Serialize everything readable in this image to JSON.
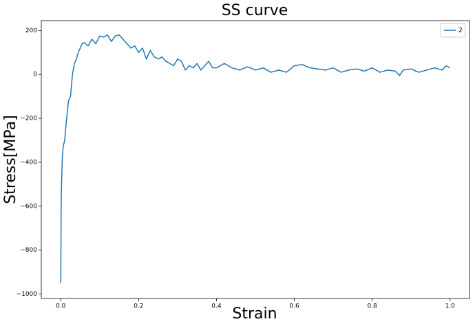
{
  "chart_data": {
    "type": "line",
    "title": "SS curve",
    "xlabel": "Strain",
    "ylabel": "Stress[MPa]",
    "x": [
      0.0,
      0.001,
      0.002,
      0.004,
      0.006,
      0.01,
      0.015,
      0.02,
      0.025,
      0.03,
      0.035,
      0.04,
      0.045,
      0.05,
      0.055,
      0.06,
      0.07,
      0.08,
      0.09,
      0.1,
      0.11,
      0.12,
      0.13,
      0.14,
      0.15,
      0.16,
      0.17,
      0.18,
      0.19,
      0.2,
      0.21,
      0.22,
      0.23,
      0.24,
      0.25,
      0.26,
      0.27,
      0.28,
      0.29,
      0.3,
      0.31,
      0.32,
      0.33,
      0.34,
      0.35,
      0.36,
      0.37,
      0.38,
      0.39,
      0.4,
      0.42,
      0.44,
      0.46,
      0.48,
      0.5,
      0.52,
      0.54,
      0.56,
      0.58,
      0.6,
      0.62,
      0.64,
      0.66,
      0.68,
      0.7,
      0.72,
      0.74,
      0.76,
      0.78,
      0.8,
      0.82,
      0.84,
      0.86,
      0.87,
      0.88,
      0.9,
      0.92,
      0.94,
      0.96,
      0.98,
      0.99,
      1.0
    ],
    "series": [
      {
        "name": "2",
        "color": "#1f77b4",
        "values": [
          -950,
          -600,
          -500,
          -380,
          -330,
          -300,
          -200,
          -120,
          -100,
          0,
          50,
          70,
          100,
          120,
          140,
          145,
          130,
          160,
          140,
          175,
          170,
          180,
          150,
          175,
          180,
          160,
          140,
          120,
          130,
          100,
          120,
          70,
          110,
          80,
          70,
          80,
          60,
          50,
          40,
          70,
          60,
          20,
          40,
          30,
          50,
          20,
          40,
          60,
          30,
          30,
          50,
          30,
          20,
          35,
          20,
          30,
          10,
          20,
          10,
          40,
          45,
          30,
          25,
          20,
          30,
          10,
          20,
          25,
          15,
          30,
          10,
          20,
          15,
          -5,
          20,
          25,
          10,
          20,
          30,
          20,
          40,
          30
        ]
      }
    ],
    "xlim": [
      -0.05,
      1.05
    ],
    "ylim": [
      -1020,
      245
    ],
    "xticks": [
      {
        "value": 0,
        "label": "0.0"
      },
      {
        "value": 0.2,
        "label": "0.2"
      },
      {
        "value": 0.4,
        "label": "0.4"
      },
      {
        "value": 0.6,
        "label": "0.6"
      },
      {
        "value": 0.8,
        "label": "0.8"
      },
      {
        "value": 1,
        "label": "1.0"
      }
    ],
    "yticks": [
      {
        "value": -1000,
        "label": "−1000"
      },
      {
        "value": -800,
        "label": "−800"
      },
      {
        "value": -600,
        "label": "−600"
      },
      {
        "value": -400,
        "label": "−400"
      },
      {
        "value": -200,
        "label": "−200"
      },
      0,
      200
    ],
    "legend": "upper right"
  }
}
